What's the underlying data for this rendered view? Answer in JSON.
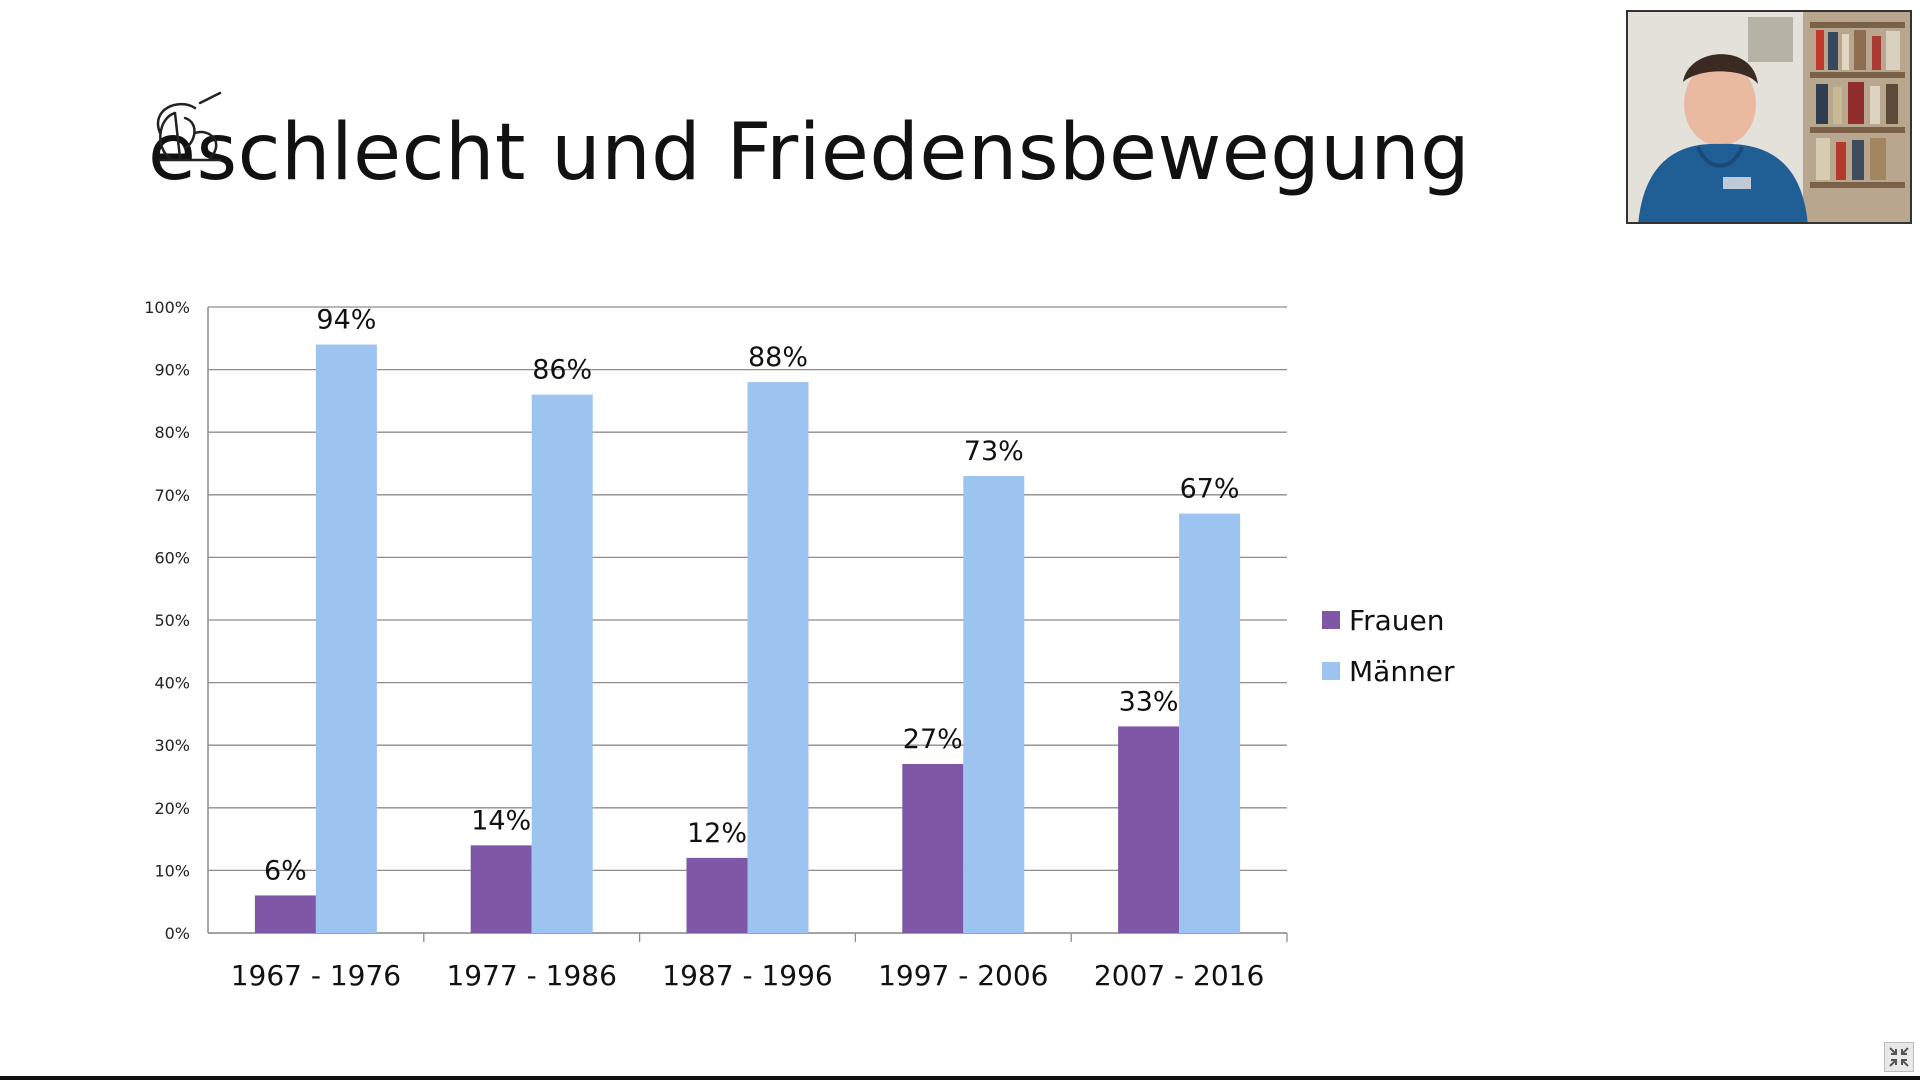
{
  "slide": {
    "title": "eschlecht und Friedensbewegung"
  },
  "webcam": {
    "label": "presenter-webcam"
  },
  "colors": {
    "frauen": "#7e57a6",
    "maenner": "#9dc3f0",
    "grid": "#8c8c8c",
    "text": "#111111"
  },
  "chart_data": {
    "type": "bar",
    "categories": [
      "1967 - 1976",
      "1977 - 1986",
      "1987 - 1996",
      "1997 - 2006",
      "2007 - 2016"
    ],
    "series": [
      {
        "name": "Frauen",
        "values": [
          6,
          14,
          12,
          27,
          33
        ],
        "labels": [
          "6%",
          "14%",
          "12%",
          "27%",
          "33%"
        ],
        "color": "#7e57a6"
      },
      {
        "name": "Männer",
        "values": [
          94,
          86,
          88,
          73,
          67
        ],
        "labels": [
          "94%",
          "86%",
          "88%",
          "73%",
          "67%"
        ],
        "color": "#9dc3f0"
      }
    ],
    "ylim": [
      0,
      100
    ],
    "yticks": [
      "0%",
      "10%",
      "20%",
      "30%",
      "40%",
      "50%",
      "60%",
      "70%",
      "80%",
      "90%",
      "100%"
    ],
    "grid": true,
    "legend": "right",
    "title": "",
    "xlabel": "",
    "ylabel": ""
  }
}
